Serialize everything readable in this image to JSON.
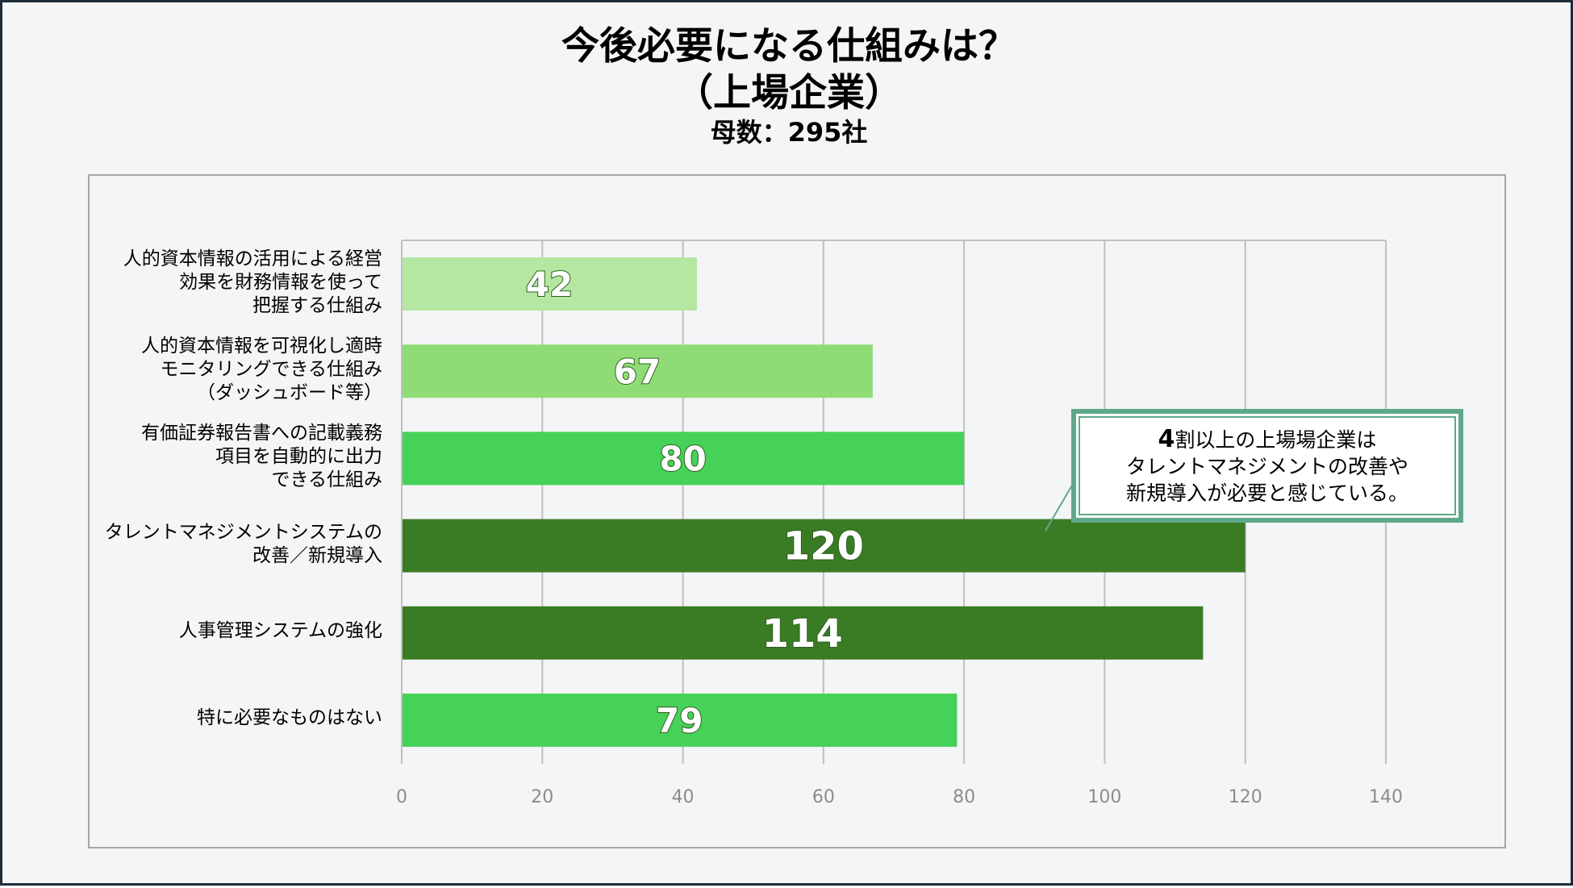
{
  "title": {
    "line1": "今後必要になる仕組みは？",
    "line2": "（上場企業）",
    "sample": "母数：295社"
  },
  "callout": {
    "number": "4",
    "line1_rest": "割以上の上場場企業は",
    "line2": "タレントマネジメントの改善や",
    "line3": "新規導入が必要と感じている。"
  },
  "colors": {
    "light": "#b5e6a2",
    "mid": "#8fdc76",
    "bright": "#46d158",
    "dark": "#3a7c24",
    "callout_border": "#5fa98a",
    "grid": "#bfbfbf"
  },
  "chart_data": {
    "type": "bar",
    "orientation": "horizontal",
    "categories": [
      [
        "人的資本情報の活用による経営",
        "効果を財務情報を使って",
        "把握する仕組み"
      ],
      [
        "人的資本情報を可視化し適時",
        "モニタリングできる仕組み",
        "（ダッシュボード等）"
      ],
      [
        "有価証券報告書への記載義務",
        "項目を自動的に出力",
        "できる仕組み"
      ],
      [
        "タレントマネジメントシステムの",
        "改善／新規導入"
      ],
      [
        "人事管理システムの強化"
      ],
      [
        "特に必要なものはない"
      ]
    ],
    "values": [
      42,
      67,
      80,
      120,
      114,
      79
    ],
    "bar_colors": [
      "#b5e6a2",
      "#8fdc76",
      "#46d158",
      "#3a7c24",
      "#3a7c24",
      "#46d158"
    ],
    "xlim": [
      0,
      140
    ],
    "xticks": [
      "0",
      "20",
      "40",
      "60",
      "80",
      "100",
      "120",
      "140"
    ],
    "grid": "vertical"
  }
}
